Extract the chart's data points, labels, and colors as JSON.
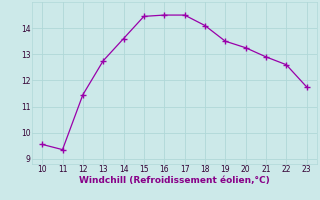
{
  "x": [
    10,
    11,
    12,
    13,
    14,
    15,
    16,
    17,
    18,
    19,
    20,
    21,
    22,
    23
  ],
  "y": [
    9.55,
    9.35,
    11.45,
    12.75,
    13.6,
    14.45,
    14.5,
    14.5,
    14.1,
    13.5,
    13.25,
    12.9,
    12.6,
    11.75
  ],
  "line_color": "#9900aa",
  "marker": "+",
  "marker_size": 4,
  "marker_linewidth": 1.0,
  "background_color": "#cce9e9",
  "grid_color": "#b0d8d8",
  "xlabel": "Windchill (Refroidissement éolien,°C)",
  "xlabel_color": "#880088",
  "xlim": [
    9.5,
    23.5
  ],
  "ylim": [
    8.8,
    15.0
  ],
  "xticks": [
    10,
    11,
    12,
    13,
    14,
    15,
    16,
    17,
    18,
    19,
    20,
    21,
    22,
    23
  ],
  "yticks": [
    9,
    10,
    11,
    12,
    13,
    14
  ],
  "tick_fontsize": 5.5,
  "xlabel_fontsize": 6.5,
  "line_width": 0.9
}
